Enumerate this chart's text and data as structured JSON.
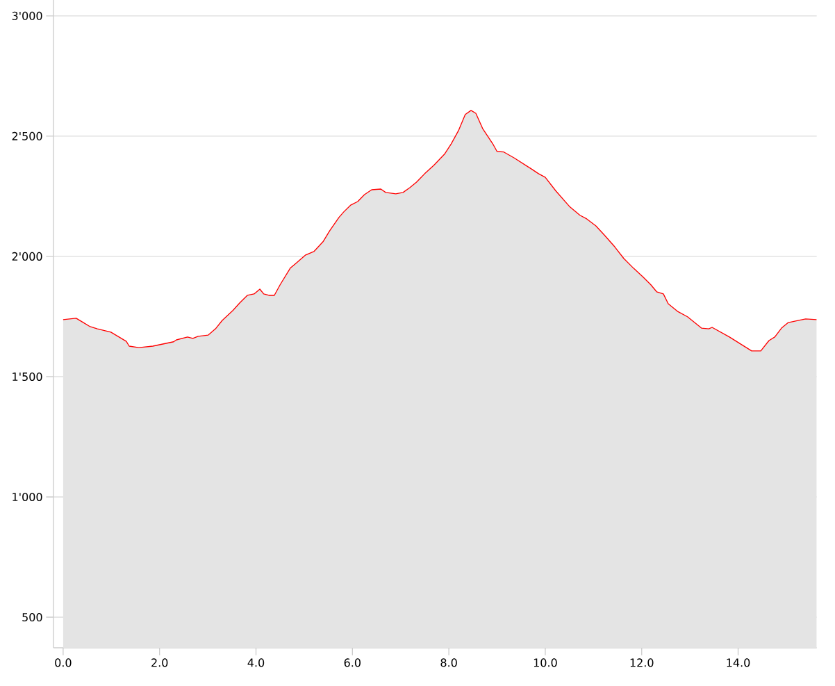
{
  "chart_data": {
    "type": "area",
    "color": "#ff0000",
    "x": [
      0,
      0.27,
      0.42,
      0.56,
      0.71,
      0.99,
      1.31,
      1.37,
      1.57,
      1.86,
      2.29,
      2.35,
      2.58,
      2.69,
      2.8,
      3.01,
      3.16,
      3.3,
      3.52,
      3.66,
      3.82,
      3.96,
      4.08,
      4.16,
      4.27,
      4.38,
      4.5,
      4.71,
      4.81,
      5.03,
      5.2,
      5.39,
      5.53,
      5.72,
      5.82,
      5.97,
      6.11,
      6.25,
      6.4,
      6.59,
      6.69,
      6.9,
      7.05,
      7.19,
      7.33,
      7.5,
      7.69,
      7.91,
      8.05,
      8.2,
      8.34,
      8.46,
      8.56,
      8.7,
      8.92,
      9.0,
      9.14,
      9.35,
      9.64,
      9.86,
      10.0,
      10.22,
      10.5,
      10.72,
      10.86,
      11.05,
      11.22,
      11.44,
      11.63,
      11.83,
      12.02,
      12.19,
      12.31,
      12.45,
      12.55,
      12.74,
      12.95,
      13.24,
      13.39,
      13.46,
      13.82,
      14.28,
      14.47,
      14.64,
      14.76,
      14.9,
      15.04,
      15.26,
      15.4,
      15.63
    ],
    "values": [
      1737,
      1743,
      1725,
      1708,
      1699,
      1685,
      1647,
      1627,
      1621,
      1627,
      1645,
      1653,
      1665,
      1659,
      1668,
      1673,
      1699,
      1734,
      1775,
      1806,
      1838,
      1844,
      1864,
      1844,
      1838,
      1838,
      1882,
      1951,
      1968,
      2006,
      2020,
      2061,
      2107,
      2162,
      2185,
      2214,
      2228,
      2257,
      2277,
      2280,
      2266,
      2260,
      2266,
      2286,
      2309,
      2344,
      2379,
      2425,
      2468,
      2523,
      2590,
      2607,
      2595,
      2532,
      2465,
      2436,
      2434,
      2410,
      2373,
      2344,
      2329,
      2272,
      2208,
      2171,
      2156,
      2127,
      2090,
      2040,
      1991,
      1951,
      1916,
      1882,
      1853,
      1844,
      1803,
      1772,
      1749,
      1702,
      1699,
      1705,
      1665,
      1607,
      1607,
      1650,
      1665,
      1702,
      1725,
      1734,
      1740,
      1737
    ],
    "xlim": [
      -0.2,
      15.63
    ],
    "ylim": [
      373,
      3066
    ],
    "xticks": [
      {
        "value": 0,
        "label": "0.0"
      },
      {
        "value": 2,
        "label": "2.0"
      },
      {
        "value": 4,
        "label": "4.0"
      },
      {
        "value": 6,
        "label": "6.0"
      },
      {
        "value": 8,
        "label": "8.0"
      },
      {
        "value": 10,
        "label": "10.0"
      },
      {
        "value": 12,
        "label": "12.0"
      },
      {
        "value": 14,
        "label": "14.0"
      }
    ],
    "yticks": [
      {
        "value": 500,
        "label": "500"
      },
      {
        "value": 1000,
        "label": "1'000"
      },
      {
        "value": 1500,
        "label": "1'500"
      },
      {
        "value": 2000,
        "label": "2'000"
      },
      {
        "value": 2500,
        "label": "2'500"
      },
      {
        "value": 3000,
        "label": "3'000"
      }
    ],
    "grid": "y"
  }
}
